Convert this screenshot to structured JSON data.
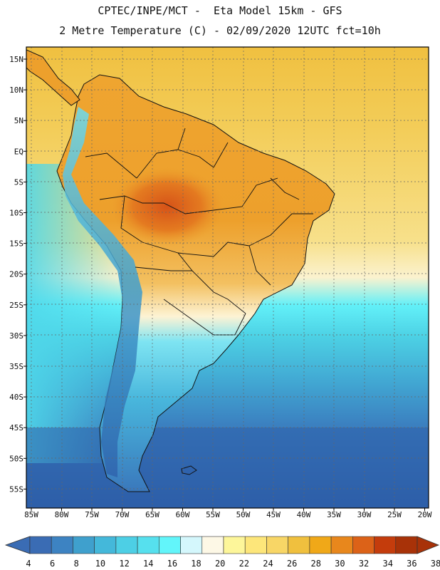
{
  "header": {
    "line1": "CPTEC/INPE/MCT -  Eta Model 15km - GFS",
    "line2": "2 Metre Temperature (C) - 02/09/2020 12UTC fct=10h"
  },
  "map": {
    "lat_labels": [
      "15N",
      "10N",
      "5N",
      "EQ",
      "5S",
      "10S",
      "15S",
      "20S",
      "25S",
      "30S",
      "35S",
      "40S",
      "45S",
      "50S",
      "55S"
    ],
    "lon_labels": [
      "85W",
      "80W",
      "75W",
      "70W",
      "65W",
      "60W",
      "55W",
      "50W",
      "45W",
      "40W",
      "35W",
      "30W",
      "25W",
      "20W"
    ]
  },
  "colorbar": {
    "labels": [
      "4",
      "6",
      "8",
      "10",
      "12",
      "14",
      "16",
      "18",
      "20",
      "22",
      "24",
      "26",
      "28",
      "30",
      "32",
      "34",
      "36",
      "38"
    ],
    "colors": [
      "#3a6cb4",
      "#3d83c2",
      "#3fa0cd",
      "#44b8da",
      "#4dcfe5",
      "#56e0ee",
      "#62f5fa",
      "#d4f7fc",
      "#fdf8e6",
      "#fdf69a",
      "#fde67a",
      "#f8d666",
      "#f0c03e",
      "#f0a818",
      "#e8871c",
      "#dc6218",
      "#c43c0c",
      "#a83208"
    ]
  },
  "colors": {
    "ocean_tropical": "#f3cd59",
    "ocean_cold": "#2d5ea8",
    "land_hot": "#d95f1c"
  }
}
